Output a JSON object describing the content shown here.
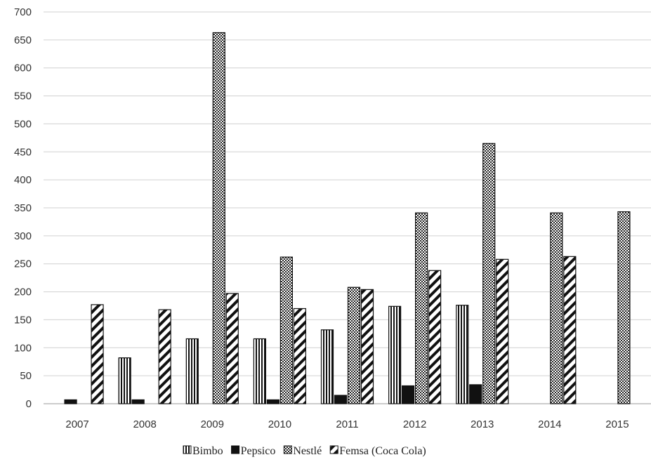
{
  "chart_data": {
    "type": "bar",
    "title": "",
    "xlabel": "",
    "ylabel": "",
    "categories": [
      "2007",
      "2008",
      "2009",
      "2010",
      "2011",
      "2012",
      "2013",
      "2014",
      "2015"
    ],
    "ylim": [
      0,
      700
    ],
    "yticks": [
      0,
      50,
      100,
      150,
      200,
      250,
      300,
      350,
      400,
      450,
      500,
      550,
      600,
      650,
      700
    ],
    "grid": true,
    "legend_position": "bottom",
    "series": [
      {
        "name": "Bimbo",
        "pattern": "vertical-lines",
        "values": [
          null,
          82,
          116,
          116,
          132,
          174,
          176,
          null,
          null
        ]
      },
      {
        "name": "Pepsico",
        "pattern": "solid-black",
        "values": [
          7,
          7,
          null,
          7,
          15,
          32,
          34,
          null,
          null
        ]
      },
      {
        "name": "Nestlé",
        "pattern": "checkered",
        "values": [
          null,
          null,
          663,
          262,
          208,
          341,
          465,
          341,
          343
        ]
      },
      {
        "name": "Femsa (Coca Cola)",
        "pattern": "diagonal-lines",
        "values": [
          177,
          168,
          197,
          170,
          204,
          238,
          258,
          263,
          null
        ]
      }
    ]
  }
}
